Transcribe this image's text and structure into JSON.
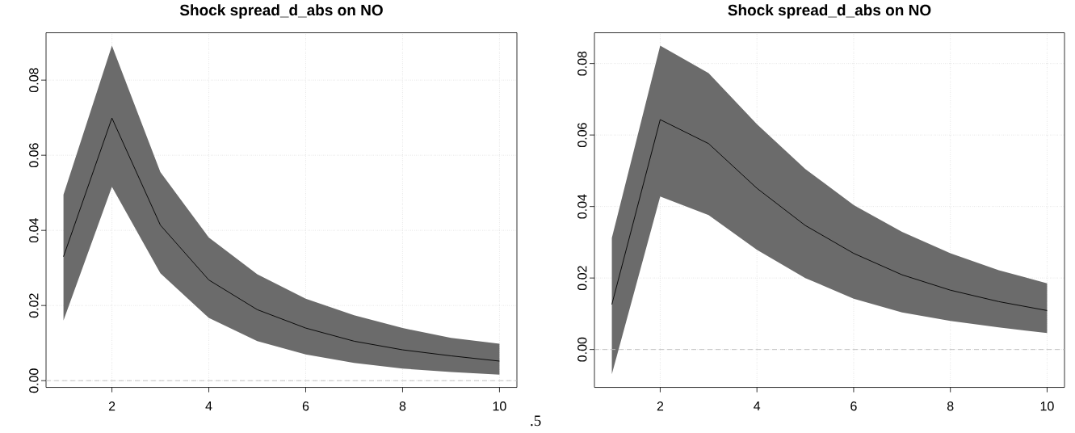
{
  "chart_data": [
    {
      "type": "line",
      "title": "Shock spread_d_abs on NO",
      "x": [
        1,
        2,
        3,
        4,
        5,
        6,
        7,
        8,
        9,
        10
      ],
      "series": [
        {
          "color": "#000000",
          "values": [
            0.033,
            0.0699,
            0.0414,
            0.0268,
            0.0189,
            0.014,
            0.0105,
            0.0082,
            0.0066,
            0.0052
          ],
          "lower": [
            0.016,
            0.0516,
            0.0286,
            0.0167,
            0.0105,
            0.007,
            0.0047,
            0.0032,
            0.0023,
            0.0016
          ],
          "upper": [
            0.0495,
            0.0892,
            0.0555,
            0.0381,
            0.0283,
            0.0218,
            0.0174,
            0.014,
            0.0114,
            0.0098
          ]
        }
      ],
      "xlim": [
        0.64,
        10.36
      ],
      "ylim": [
        -0.0018,
        0.0926
      ],
      "xticks": [
        2,
        4,
        6,
        8,
        10
      ],
      "yticks": [
        {
          "value": 0,
          "label": "0.00"
        },
        {
          "value": 0.02,
          "label": "0.02"
        },
        {
          "value": 0.04,
          "label": "0.04"
        },
        {
          "value": 0.06,
          "label": "0.06"
        },
        {
          "value": 0.08,
          "label": "0.08"
        }
      ],
      "grid": true,
      "ref_lines": [
        {
          "axis": "y",
          "value": 0,
          "color": "#bebebe",
          "line_style": "dashed"
        }
      ],
      "annotations": [
        ".5"
      ]
    },
    {
      "type": "line",
      "title": "Shock spread_d_abs on NO",
      "x": [
        1,
        2,
        3,
        4,
        5,
        6,
        7,
        8,
        9,
        10
      ],
      "series": [
        {
          "color": "#000000",
          "values": [
            0.0126,
            0.0643,
            0.0576,
            0.0451,
            0.0347,
            0.0269,
            0.0209,
            0.0166,
            0.0134,
            0.0109
          ],
          "lower": [
            -0.0069,
            0.0428,
            0.0376,
            0.0279,
            0.02,
            0.0142,
            0.0104,
            0.008,
            0.0062,
            0.0046
          ],
          "upper": [
            0.0312,
            0.085,
            0.0773,
            0.063,
            0.0505,
            0.0404,
            0.0329,
            0.0269,
            0.0222,
            0.0185
          ]
        }
      ],
      "xlim": [
        0.64,
        10.36
      ],
      "ylim": [
        -0.0106,
        0.0886
      ],
      "xticks": [
        2,
        4,
        6,
        8,
        10
      ],
      "yticks": [
        {
          "value": 0,
          "label": "0.00"
        },
        {
          "value": 0.02,
          "label": "0.02"
        },
        {
          "value": 0.04,
          "label": "0.04"
        },
        {
          "value": 0.06,
          "label": "0.06"
        },
        {
          "value": 0.08,
          "label": "0.08"
        }
      ],
      "grid": true,
      "ref_lines": [
        {
          "axis": "y",
          "value": 0,
          "color": "#bebebe",
          "line_style": "dashed"
        }
      ]
    }
  ]
}
